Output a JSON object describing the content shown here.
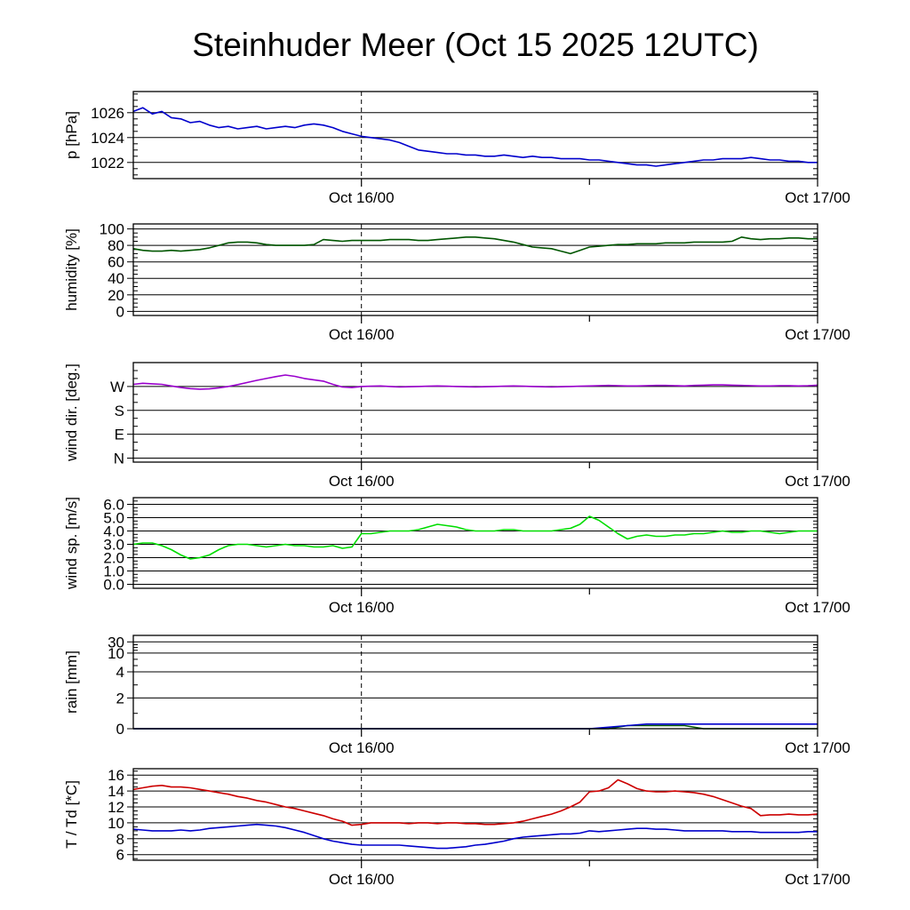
{
  "title": "Steinhuder Meer (Oct 15 2025 12UTC)",
  "x_axis": {
    "start_hour": 0,
    "end_hour": 36,
    "start_time_label": "Oct 15 2025 12UTC",
    "dashed_hour": 12,
    "ticks": [
      {
        "hour": 12,
        "label": "Oct 16/00"
      },
      {
        "hour": 24,
        "label": ""
      },
      {
        "hour": 36,
        "label": "Oct 17/00"
      }
    ]
  },
  "chart_data": [
    {
      "type": "line",
      "ylabel": "p [hPa]",
      "ylim": [
        1020.7,
        1027.7
      ],
      "yminor_step": 0.5,
      "yticks": [
        {
          "v": 1026,
          "label": "1026"
        },
        {
          "v": 1024,
          "label": "1024"
        },
        {
          "v": 1022,
          "label": "1022"
        }
      ],
      "x_start_hour": 0,
      "x_step_hours": 0.5,
      "series": [
        {
          "name": "pressure",
          "color": "#0000cc",
          "values": [
            1026.1,
            1026.4,
            1025.9,
            1026.1,
            1025.6,
            1025.5,
            1025.2,
            1025.3,
            1025.0,
            1024.8,
            1024.9,
            1024.7,
            1024.8,
            1024.9,
            1024.7,
            1024.8,
            1024.9,
            1024.8,
            1025.0,
            1025.1,
            1025.0,
            1024.8,
            1024.5,
            1024.3,
            1024.1,
            1024.0,
            1023.9,
            1023.8,
            1023.6,
            1023.3,
            1023.0,
            1022.9,
            1022.8,
            1022.7,
            1022.7,
            1022.6,
            1022.6,
            1022.5,
            1022.5,
            1022.6,
            1022.5,
            1022.4,
            1022.5,
            1022.4,
            1022.4,
            1022.3,
            1022.3,
            1022.3,
            1022.2,
            1022.2,
            1022.1,
            1022.0,
            1021.9,
            1021.8,
            1021.8,
            1021.7,
            1021.8,
            1021.9,
            1022.0,
            1022.1,
            1022.2,
            1022.2,
            1022.3,
            1022.3,
            1022.3,
            1022.4,
            1022.3,
            1022.2,
            1022.2,
            1022.1,
            1022.1,
            1022.0,
            1022.0
          ]
        }
      ]
    },
    {
      "type": "line",
      "ylabel": "humidity [%]",
      "ylim": [
        -5,
        106
      ],
      "yminor_step": 5,
      "yticks": [
        {
          "v": 100,
          "label": "100"
        },
        {
          "v": 80,
          "label": "80"
        },
        {
          "v": 60,
          "label": "60"
        },
        {
          "v": 40,
          "label": "40"
        },
        {
          "v": 20,
          "label": "20"
        },
        {
          "v": 0,
          "label": "0"
        }
      ],
      "x_start_hour": 0,
      "x_step_hours": 0.5,
      "series": [
        {
          "name": "relative-humidity",
          "color": "#005500",
          "values": [
            76,
            74,
            73,
            73,
            74,
            73,
            74,
            75,
            77,
            80,
            83,
            84,
            84,
            83,
            81,
            80,
            80,
            80,
            80,
            81,
            87,
            86,
            85,
            86,
            86,
            86,
            86,
            87,
            87,
            87,
            86,
            86,
            87,
            88,
            89,
            90,
            90,
            89,
            88,
            86,
            84,
            81,
            78,
            77,
            76,
            73,
            70,
            74,
            78,
            79,
            80,
            81,
            81,
            82,
            82,
            82,
            83,
            83,
            83,
            84,
            84,
            84,
            84,
            85,
            90,
            88,
            87,
            88,
            88,
            89,
            89,
            88,
            88
          ]
        }
      ]
    },
    {
      "type": "line",
      "ylabel": "wind dir. [deg.]",
      "ylim": [
        -15,
        360
      ],
      "yminor_step": 30,
      "yticks": [
        {
          "v": 270,
          "label": "W"
        },
        {
          "v": 180,
          "label": "S"
        },
        {
          "v": 90,
          "label": "E"
        },
        {
          "v": 0,
          "label": "N"
        }
      ],
      "x_start_hour": 0,
      "x_step_hours": 0.5,
      "series": [
        {
          "name": "wind-direction",
          "color": "#9900cc",
          "values": [
            278,
            282,
            280,
            278,
            272,
            266,
            262,
            260,
            261,
            265,
            270,
            277,
            285,
            293,
            300,
            307,
            313,
            308,
            300,
            295,
            290,
            278,
            268,
            266,
            270,
            271,
            272,
            270,
            268,
            269,
            270,
            271,
            272,
            271,
            270,
            269,
            268,
            269,
            270,
            271,
            272,
            271,
            270,
            269,
            268,
            269,
            270,
            271,
            272,
            273,
            274,
            273,
            272,
            272,
            273,
            274,
            274,
            273,
            272,
            274,
            275,
            276,
            276,
            275,
            274,
            273,
            272,
            272,
            273,
            273,
            272,
            273,
            275
          ]
        }
      ]
    },
    {
      "type": "line",
      "ylabel": "wind sp. [m/s]",
      "ylim": [
        -0.3,
        6.5
      ],
      "yminor_step": 0.25,
      "yticks": [
        {
          "v": 6,
          "label": "6.0"
        },
        {
          "v": 5,
          "label": "5.0"
        },
        {
          "v": 4,
          "label": "4.0"
        },
        {
          "v": 3,
          "label": "3.0"
        },
        {
          "v": 2,
          "label": "2.0"
        },
        {
          "v": 1,
          "label": "1.0"
        },
        {
          "v": 0,
          "label": "0.0"
        }
      ],
      "x_start_hour": 0,
      "x_step_hours": 0.5,
      "series": [
        {
          "name": "wind-speed",
          "color": "#00dd00",
          "values": [
            3.0,
            3.1,
            3.1,
            2.9,
            2.6,
            2.2,
            1.9,
            2.0,
            2.2,
            2.6,
            2.9,
            3.0,
            3.0,
            2.9,
            2.8,
            2.9,
            3.0,
            2.9,
            2.9,
            2.8,
            2.8,
            2.9,
            2.7,
            2.8,
            3.8,
            3.8,
            3.9,
            4.0,
            4.0,
            4.0,
            4.1,
            4.3,
            4.5,
            4.4,
            4.3,
            4.1,
            4.0,
            4.0,
            4.0,
            4.1,
            4.1,
            4.0,
            4.0,
            4.0,
            4.0,
            4.1,
            4.2,
            4.5,
            5.1,
            4.8,
            4.3,
            3.8,
            3.4,
            3.6,
            3.7,
            3.6,
            3.6,
            3.7,
            3.7,
            3.8,
            3.8,
            3.9,
            4.0,
            3.9,
            3.9,
            4.0,
            4.0,
            3.9,
            3.8,
            3.9,
            4.0,
            4.0,
            4.0
          ]
        }
      ]
    },
    {
      "type": "line",
      "ylabel": "rain [mm]",
      "scale_points": [
        [
          0,
          0
        ],
        [
          2,
          0.33
        ],
        [
          4,
          0.61
        ],
        [
          10,
          0.81
        ],
        [
          30,
          0.93
        ]
      ],
      "yminor_values": [
        1,
        3,
        6,
        8,
        15,
        20,
        25
      ],
      "yticks": [
        {
          "v": 30,
          "label": "30"
        },
        {
          "v": 10,
          "label": "10"
        },
        {
          "v": 4,
          "label": "4"
        },
        {
          "v": 2,
          "label": "2"
        },
        {
          "v": 0,
          "label": "0"
        }
      ],
      "x_start_hour": 0,
      "x_step_hours": 1,
      "series": [
        {
          "name": "rain-green",
          "color": "#005500",
          "values": [
            0,
            0,
            0,
            0,
            0,
            0,
            0,
            0,
            0,
            0,
            0,
            0,
            0,
            0,
            0,
            0,
            0,
            0,
            0,
            0,
            0,
            0,
            0,
            0,
            0,
            0,
            0.2,
            0.2,
            0.2,
            0.2,
            0,
            0,
            0,
            0,
            0,
            0,
            0
          ]
        },
        {
          "name": "rain-accumulated",
          "color": "#0000cc",
          "values": [
            0,
            0,
            0,
            0,
            0,
            0,
            0,
            0,
            0,
            0,
            0,
            0,
            0,
            0,
            0,
            0,
            0,
            0,
            0,
            0,
            0,
            0,
            0,
            0,
            0,
            0.1,
            0.2,
            0.3,
            0.3,
            0.3,
            0.3,
            0.3,
            0.3,
            0.3,
            0.3,
            0.3,
            0.3
          ]
        }
      ]
    },
    {
      "type": "line",
      "ylabel": "T / Td [*C]",
      "ylim": [
        5.3,
        16.8
      ],
      "yminor_step": 0.5,
      "yticks": [
        {
          "v": 16,
          "label": "16"
        },
        {
          "v": 14,
          "label": "14"
        },
        {
          "v": 12,
          "label": "12"
        },
        {
          "v": 10,
          "label": "10"
        },
        {
          "v": 8,
          "label": "8"
        },
        {
          "v": 6,
          "label": "6"
        }
      ],
      "x_start_hour": 0,
      "x_step_hours": 0.5,
      "series": [
        {
          "name": "temperature",
          "color": "#cc0000",
          "values": [
            14.2,
            14.4,
            14.6,
            14.7,
            14.5,
            14.5,
            14.4,
            14.2,
            14.0,
            13.8,
            13.6,
            13.3,
            13.1,
            12.8,
            12.6,
            12.3,
            12.0,
            11.8,
            11.5,
            11.2,
            10.9,
            10.5,
            10.2,
            9.7,
            9.8,
            10.0,
            10.0,
            10.0,
            10.0,
            9.9,
            10.0,
            10.0,
            9.9,
            10.0,
            10.0,
            9.9,
            9.9,
            9.8,
            9.8,
            9.9,
            10.0,
            10.2,
            10.5,
            10.8,
            11.1,
            11.5,
            12.0,
            12.6,
            13.9,
            14.0,
            14.4,
            15.4,
            14.9,
            14.3,
            14.0,
            13.9,
            13.9,
            14.0,
            13.9,
            13.8,
            13.6,
            13.3,
            12.9,
            12.5,
            12.1,
            11.8,
            10.9,
            11.0,
            11.0,
            11.1,
            11.0,
            11.0,
            11.1
          ]
        },
        {
          "name": "dewpoint",
          "color": "#0000cc",
          "values": [
            9.2,
            9.1,
            9.0,
            9.0,
            9.0,
            9.1,
            9.0,
            9.1,
            9.3,
            9.4,
            9.5,
            9.6,
            9.7,
            9.8,
            9.7,
            9.6,
            9.4,
            9.1,
            8.8,
            8.4,
            8.0,
            7.7,
            7.5,
            7.3,
            7.2,
            7.2,
            7.2,
            7.2,
            7.2,
            7.1,
            7.0,
            6.9,
            6.8,
            6.8,
            6.9,
            7.0,
            7.2,
            7.3,
            7.5,
            7.7,
            8.0,
            8.2,
            8.3,
            8.4,
            8.5,
            8.6,
            8.6,
            8.7,
            9.0,
            8.9,
            9.0,
            9.1,
            9.2,
            9.3,
            9.3,
            9.2,
            9.2,
            9.1,
            9.0,
            9.0,
            9.0,
            9.0,
            9.0,
            8.9,
            8.9,
            8.9,
            8.8,
            8.8,
            8.8,
            8.8,
            8.8,
            8.9,
            8.9
          ]
        }
      ]
    }
  ]
}
